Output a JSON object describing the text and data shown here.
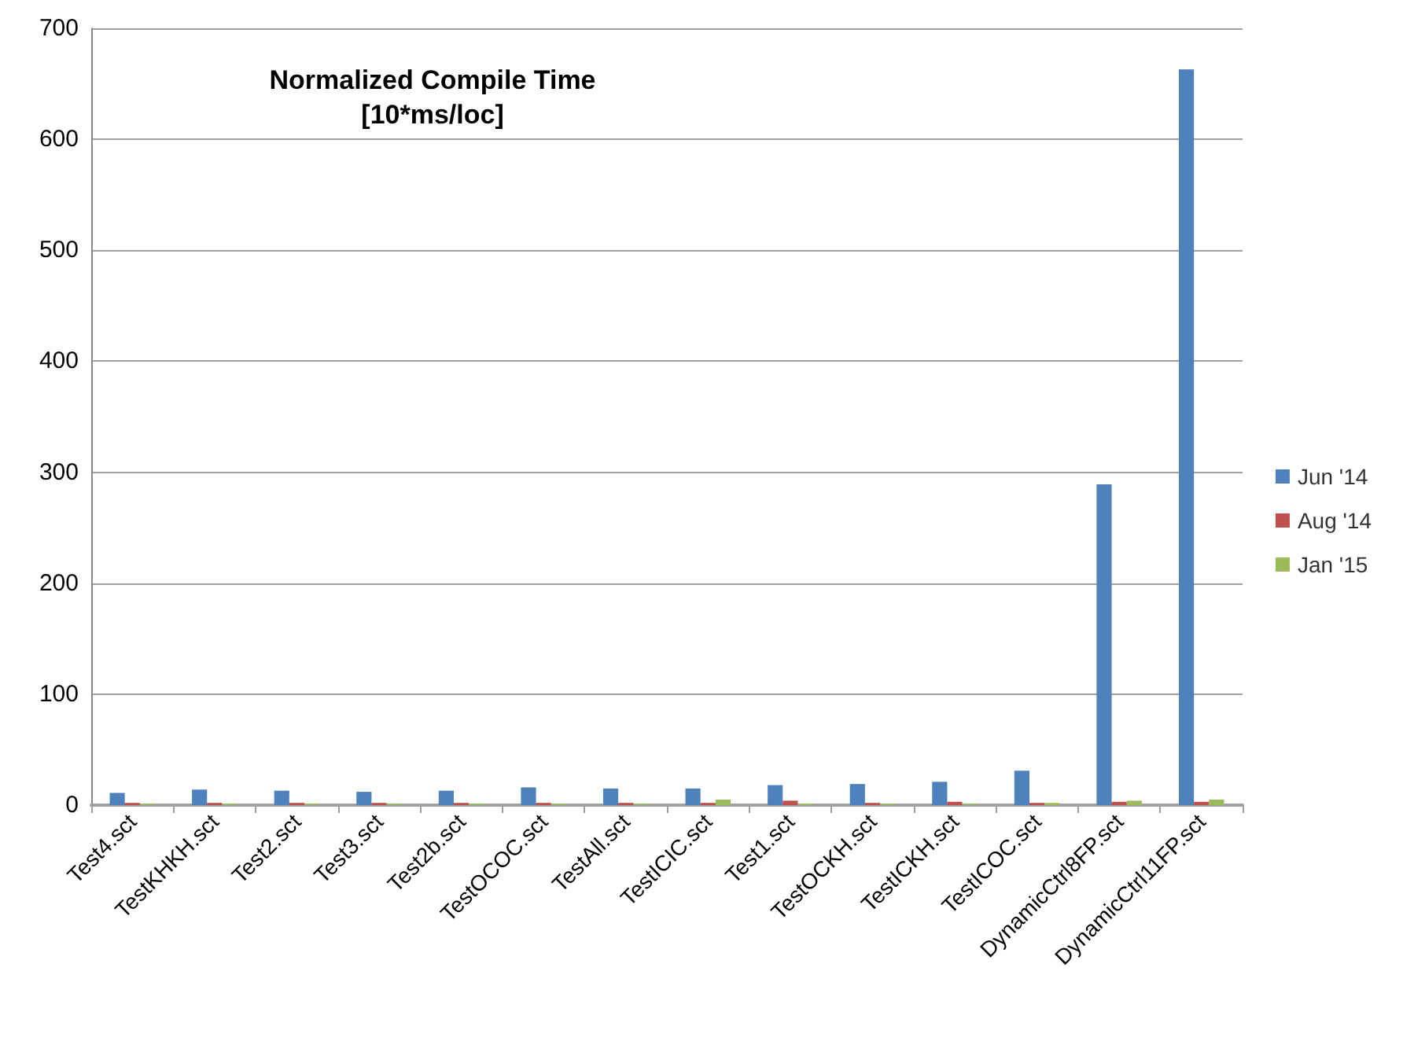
{
  "chart_data": {
    "type": "bar",
    "title": "Normalized Compile Time\n[10*ms/loc]",
    "categories": [
      "Test4.sct",
      "TestKHKH.sct",
      "Test2.sct",
      "Test3.sct",
      "Test2b.sct",
      "TestOCOC.sct",
      "TestAll.sct",
      "TestICIC.sct",
      "Test1.sct",
      "TestOCKH.sct",
      "TestICKH.sct",
      "TestICOC.sct",
      "DynamicCtrl8FP.sct",
      "DynamicCtrl11FP.sct"
    ],
    "series": [
      {
        "name": "Jun '14",
        "color": "#4f81bd",
        "values": [
          11,
          14,
          13,
          12,
          13,
          16,
          15,
          15,
          18,
          19,
          21,
          31,
          289,
          663
        ]
      },
      {
        "name": "Aug '14",
        "color": "#c0504d",
        "values": [
          2,
          2,
          2,
          2,
          2,
          2,
          2,
          2,
          4,
          2,
          3,
          2,
          3,
          3
        ]
      },
      {
        "name": "Jan '15",
        "color": "#9bbb59",
        "values": [
          1,
          1,
          1,
          1,
          1,
          1,
          1,
          5,
          1,
          1,
          1,
          2,
          4,
          5
        ]
      }
    ],
    "ylim": [
      0,
      700
    ],
    "yticks": [
      0,
      100,
      200,
      300,
      400,
      500,
      600,
      700
    ],
    "grid": "y",
    "legend": "right"
  }
}
